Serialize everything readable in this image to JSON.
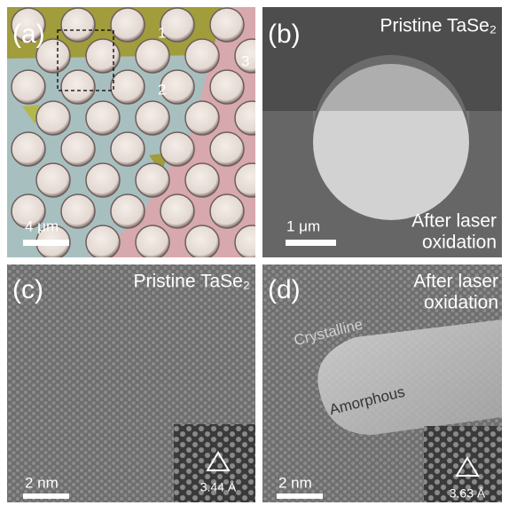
{
  "panels": [
    {
      "label": "(a)",
      "markers": [
        "1",
        "2",
        "3"
      ],
      "scale_bar": "4 μm"
    },
    {
      "label": "(b)",
      "title": "Pristine TaSe₂",
      "scale_bar": "1 μm",
      "caption_lines": [
        "After laser",
        "oxidation"
      ]
    },
    {
      "label": "(c)",
      "title": "Pristine TaSe₂",
      "scale_bar": "2 nm",
      "inset_label": "3.44 Å"
    },
    {
      "label": "(d)",
      "title_lines": [
        "After laser",
        "oxidation"
      ],
      "annotations": [
        "Crystalline",
        "Amorphous"
      ],
      "scale_bar": "2 nm",
      "inset_label": "3.63 Å"
    }
  ]
}
